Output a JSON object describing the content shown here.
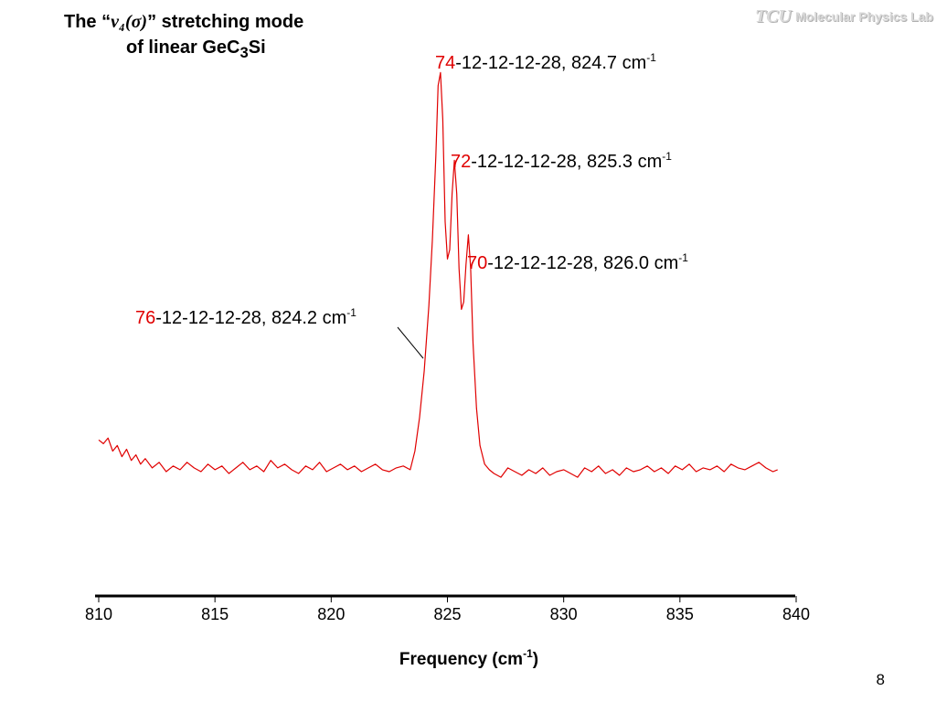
{
  "slide": {
    "title_prefix": "The “",
    "title_symbol": "ν₄(σ)",
    "title_suffix": "” stretching mode",
    "title_line2_prefix": "of linear  GeC",
    "title_line2_sub": "3",
    "title_line2_suffix": "Si",
    "logo_mark": "TCU",
    "logo_text": "Molecular Physics Lab",
    "page_number": "8"
  },
  "chart_data": {
    "type": "line",
    "title": "",
    "xlabel": "Frequency (cm-1)",
    "xlabel_main": "Frequency (cm",
    "xlabel_sup": "-1",
    "xlabel_end": ")",
    "ylabel": "",
    "xlim": [
      810,
      840
    ],
    "x_ticks": [
      "810",
      "815",
      "820",
      "825",
      "830",
      "835",
      "840"
    ],
    "grid": false,
    "line_color": "#e00000",
    "annotation_color": "#e00000",
    "annotations": [
      {
        "isotope": "74",
        "text": "-12-12-12-28, 824.7 cm",
        "sup": "-1",
        "peak": 824.7
      },
      {
        "isotope": "72",
        "text": "-12-12-12-28, 825.3 cm",
        "sup": "-1",
        "peak": 825.3
      },
      {
        "isotope": "70",
        "text": "-12-12-12-28, 826.0 cm",
        "sup": "-1",
        "peak": 826.0
      },
      {
        "isotope": "76",
        "text": "-12-12-12-28, 824.2 cm",
        "sup": "-1",
        "peak": 824.2
      }
    ],
    "series": [
      {
        "x": [
          810.0,
          810.2,
          810.4,
          810.6,
          810.8,
          811.0,
          811.2,
          811.4,
          811.6,
          811.8,
          812.0,
          812.3,
          812.6,
          812.9,
          813.2,
          813.5,
          813.8,
          814.1,
          814.4,
          814.7,
          815.0,
          815.3,
          815.6,
          815.9,
          816.2,
          816.5,
          816.8,
          817.1,
          817.4,
          817.7,
          818.0,
          818.3,
          818.6,
          818.9,
          819.2,
          819.5,
          819.8,
          820.1,
          820.4,
          820.7,
          821.0,
          821.3,
          821.6,
          821.9,
          822.2,
          822.5,
          822.8,
          823.1,
          823.4,
          823.6,
          823.8,
          824.0,
          824.2,
          824.35,
          824.5,
          824.6,
          824.7,
          824.8,
          824.9,
          825.0,
          825.1,
          825.2,
          825.3,
          825.4,
          825.5,
          825.6,
          825.7,
          825.8,
          825.9,
          826.0,
          826.1,
          826.25,
          826.4,
          826.6,
          826.8,
          827.0,
          827.3,
          827.6,
          827.9,
          828.2,
          828.5,
          828.8,
          829.1,
          829.4,
          829.7,
          830.0,
          830.3,
          830.6,
          830.9,
          831.2,
          831.5,
          831.8,
          832.1,
          832.4,
          832.7,
          833.0,
          833.3,
          833.6,
          833.9,
          834.2,
          834.5,
          834.8,
          835.1,
          835.4,
          835.7,
          836.0,
          836.3,
          836.6,
          836.9,
          837.2,
          837.5,
          837.8,
          838.1,
          838.4,
          838.7,
          839.0,
          839.2
        ],
        "y": [
          0.18,
          0.16,
          0.19,
          0.12,
          0.15,
          0.09,
          0.13,
          0.07,
          0.1,
          0.05,
          0.08,
          0.03,
          0.06,
          0.01,
          0.04,
          0.02,
          0.06,
          0.03,
          0.01,
          0.05,
          0.02,
          0.04,
          0.0,
          0.03,
          0.06,
          0.02,
          0.04,
          0.01,
          0.07,
          0.03,
          0.05,
          0.02,
          0.0,
          0.04,
          0.02,
          0.06,
          0.01,
          0.03,
          0.05,
          0.02,
          0.04,
          0.01,
          0.03,
          0.05,
          0.02,
          0.01,
          0.03,
          0.04,
          0.02,
          0.12,
          0.3,
          0.55,
          0.9,
          1.25,
          1.7,
          2.08,
          2.15,
          1.9,
          1.35,
          1.15,
          1.2,
          1.5,
          1.68,
          1.5,
          1.1,
          0.88,
          0.92,
          1.12,
          1.28,
          1.1,
          0.7,
          0.35,
          0.15,
          0.05,
          0.02,
          0.0,
          -0.02,
          0.03,
          0.01,
          -0.01,
          0.02,
          0.0,
          0.03,
          -0.01,
          0.01,
          0.02,
          0.0,
          -0.02,
          0.03,
          0.01,
          0.04,
          0.0,
          0.02,
          -0.01,
          0.03,
          0.01,
          0.02,
          0.04,
          0.01,
          0.03,
          0.0,
          0.04,
          0.02,
          0.05,
          0.01,
          0.03,
          0.02,
          0.04,
          0.01,
          0.05,
          0.03,
          0.02,
          0.04,
          0.06,
          0.03,
          0.01,
          0.02
        ]
      }
    ]
  }
}
